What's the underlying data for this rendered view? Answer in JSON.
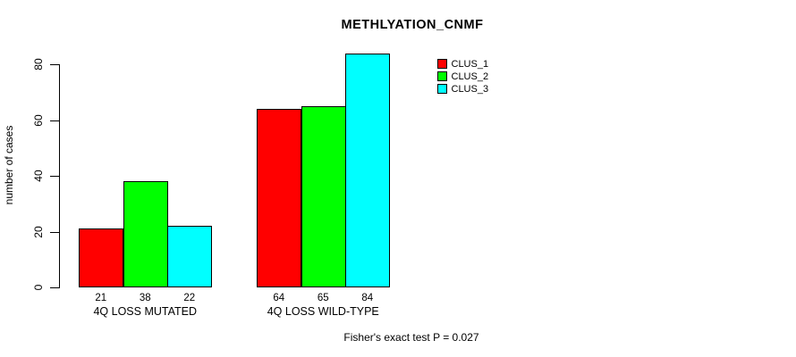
{
  "chart": {
    "title": "METHLYATION_CNMF",
    "ylabel": "number of cases",
    "footer_annotation": "Fisher's exact test P = 0.027"
  },
  "legend": {
    "items": [
      {
        "label": "CLUS_1",
        "color": "#ff0000"
      },
      {
        "label": "CLUS_2",
        "color": "#00ff00"
      },
      {
        "label": "CLUS_3",
        "color": "#00ffff"
      }
    ]
  },
  "chart_data": {
    "type": "bar",
    "title": "METHLYATION_CNMF",
    "xlabel": "",
    "ylabel": "number of cases",
    "categories": [
      "4Q LOSS MUTATED",
      "4Q LOSS WILD-TYPE"
    ],
    "series": [
      {
        "name": "CLUS_1",
        "color": "#ff0000",
        "values": [
          21,
          64
        ]
      },
      {
        "name": "CLUS_2",
        "color": "#00ff00",
        "values": [
          38,
          65
        ]
      },
      {
        "name": "CLUS_3",
        "color": "#00ffff",
        "values": [
          22,
          84
        ]
      }
    ],
    "bar_value_labels": [
      [
        21,
        38,
        22
      ],
      [
        64,
        65,
        84
      ]
    ],
    "yticks": [
      0,
      20,
      40,
      60,
      80
    ],
    "ylim": [
      0,
      85
    ],
    "grid": false,
    "bar_border_color": "#000000",
    "background": "#ffffff",
    "legend_position": "top-right",
    "annotation": "Fisher's exact test P = 0.027"
  }
}
